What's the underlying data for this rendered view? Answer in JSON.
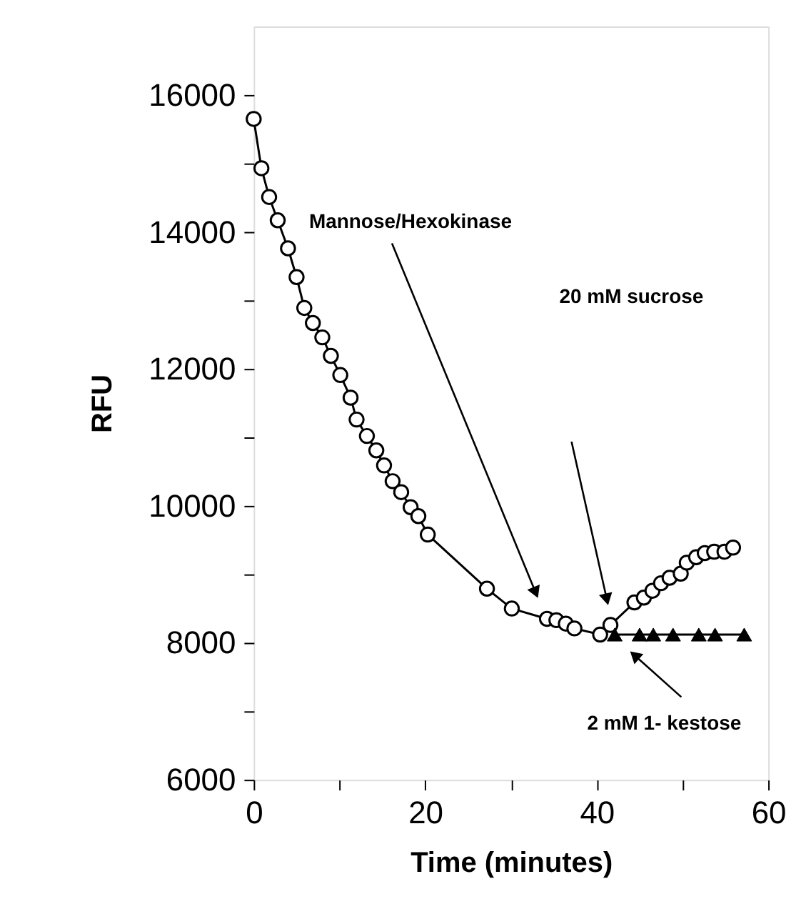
{
  "chart_data": {
    "type": "line",
    "xlabel": "Time (minutes)",
    "ylabel": "RFU",
    "xlim": [
      0,
      60
    ],
    "ylim": [
      6000,
      17000
    ],
    "xticks": [
      0,
      {
        "value": 10,
        "label": null
      },
      20,
      {
        "value": 30,
        "label": null
      },
      40,
      {
        "value": 50,
        "label": null
      },
      60
    ],
    "yticks": [
      6000,
      {
        "value": 7000,
        "label": null
      },
      8000,
      {
        "value": 9000,
        "label": null
      },
      10000,
      {
        "value": 11000,
        "label": null
      },
      12000,
      {
        "value": 13000,
        "label": null
      },
      14000,
      {
        "value": 15000,
        "label": null
      },
      16000
    ],
    "grid": false,
    "line_style": "solid",
    "series": [
      {
        "color": "#000000",
        "marker": "circle",
        "x": [
          0,
          0.9,
          1.8,
          2.8,
          4,
          5,
          5.9,
          6.9,
          8,
          9,
          10.1,
          11.3,
          12,
          13.2,
          14.3,
          15.2,
          16.2,
          17.2,
          18.3,
          19.2,
          20.3,
          27.2,
          30.1,
          34.2,
          35.3,
          36.4,
          37.4,
          40.4,
          41.6,
          44.4,
          45.5,
          46.5,
          47.5,
          48.5,
          49.8,
          50.5,
          51.6,
          52.6,
          53.7,
          54.9,
          55.9
        ],
        "values": [
          15650,
          14930,
          14510,
          14170,
          13760,
          13340,
          12890,
          12670,
          12460,
          12190,
          11910,
          11580,
          11260,
          11020,
          10810,
          10590,
          10360,
          10200,
          9980,
          9850,
          9580,
          8790,
          8500,
          8350,
          8330,
          8280,
          8210,
          8120,
          8260,
          8590,
          8660,
          8760,
          8870,
          8950,
          9010,
          9170,
          9250,
          9310,
          9330,
          9330,
          9390
        ]
      },
      {
        "color": "#000000",
        "marker": "triangle",
        "x": [
          42.1,
          45.0,
          46.6,
          48.9,
          51.9,
          53.8,
          57.2
        ],
        "values": [
          8120,
          8120,
          8120,
          8120,
          8120,
          8120,
          8120
        ]
      }
    ],
    "annotations": [
      "Mannose/Hexokinase",
      "20 mM sucrose",
      "2 mM 1- kestose"
    ]
  }
}
